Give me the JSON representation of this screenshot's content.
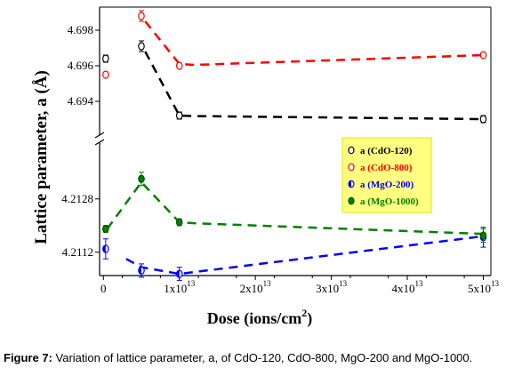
{
  "caption": {
    "label": "Figure 7:",
    "text": "Variation of lattice parameter, a, of CdO-120, CdO-800, MgO-200 and MgO-1000."
  },
  "chart_data": {
    "type": "scatter",
    "xlabel_main": "Dose (ions/cm",
    "xlabel_sup": "2",
    "xlabel_end": ")",
    "ylabel": "Lattice parameter, a (Å)",
    "x_ticks": [
      {
        "value": 0,
        "mant": "0",
        "exp": ""
      },
      {
        "value": 10000000000000.0,
        "mant": "1x10",
        "exp": "13"
      },
      {
        "value": 20000000000000.0,
        "mant": "2x10",
        "exp": "13"
      },
      {
        "value": 30000000000000.0,
        "mant": "3x10",
        "exp": "13"
      },
      {
        "value": 40000000000000.0,
        "mant": "4x10",
        "exp": "13"
      },
      {
        "value": 50000000000000.0,
        "mant": "5x10",
        "exp": "13"
      }
    ],
    "xlim": [
      -500000000000.0,
      51000000000000.0
    ],
    "y_upper": {
      "ylim": [
        4.6921,
        4.6993
      ],
      "ticks": [
        "4.694",
        "4.696",
        "4.698"
      ]
    },
    "y_lower": {
      "ylim": [
        4.2105,
        4.2145
      ],
      "ticks": [
        "4.2112",
        "4.2128"
      ]
    },
    "legend": {
      "position": "right-middle",
      "entries": [
        "a (CdO-120)",
        "a (CdO-800)",
        "a (MgO-200)",
        "a (MgO-1000)"
      ]
    },
    "series": [
      {
        "name": "a (CdO-120)",
        "panel": "upper",
        "color": "#000000",
        "x": [
          300000000000.0,
          5000000000000.0,
          10000000000000.0,
          50000000000000.0
        ],
        "y": [
          4.6964,
          4.6971,
          4.6932,
          4.693
        ],
        "err": [
          0.0002,
          0.0003,
          0.0002,
          0.0002
        ],
        "fit": [
          [
            5500000000000.0,
            4.6968
          ],
          [
            10000000000000.0,
            4.6932
          ],
          [
            12000000000000.0,
            4.69317
          ],
          [
            50000000000000.0,
            4.693
          ]
        ]
      },
      {
        "name": "a (CdO-800)",
        "panel": "upper",
        "color": "#ff0000",
        "x": [
          300000000000.0,
          5000000000000.0,
          10000000000000.0,
          50000000000000.0
        ],
        "y": [
          4.6955,
          4.6988,
          4.696,
          4.6966
        ],
        "err": [
          0.0001,
          0.0003,
          0.0001,
          0.0001
        ],
        "fit": [
          [
            5500000000000.0,
            4.6985
          ],
          [
            10000000000000.0,
            4.6961
          ],
          [
            12000000000000.0,
            4.69605
          ],
          [
            50000000000000.0,
            4.6966
          ]
        ]
      },
      {
        "name": "a (MgO-200)",
        "panel": "lower",
        "color": "#0000ff",
        "x": [
          300000000000.0,
          5000000000000.0,
          10000000000000.0,
          50000000000000.0
        ],
        "y": [
          4.2113,
          4.21065,
          4.21055,
          4.21165
        ],
        "err": [
          0.0003,
          0.0002,
          0.0002,
          0.0003
        ],
        "fit": [
          [
            3000000000000.0,
            4.211
          ],
          [
            5000000000000.0,
            4.21075
          ],
          [
            10000000000000.0,
            4.21055
          ],
          [
            50000000000000.0,
            4.21168
          ]
        ]
      },
      {
        "name": "a (MgO-1000)",
        "panel": "lower",
        "color": "#008000",
        "x": [
          300000000000.0,
          5000000000000.0,
          10000000000000.0,
          50000000000000.0
        ],
        "y": [
          4.2119,
          4.2134,
          4.2121,
          4.2117
        ],
        "err": [
          0.0001,
          0.0002,
          0.0001,
          0.0002
        ],
        "fit": [
          [
            500000000000.0,
            4.2119
          ],
          [
            5000000000000.0,
            4.2133
          ],
          [
            10000000000000.0,
            4.2121
          ],
          [
            12000000000000.0,
            4.21207
          ],
          [
            50000000000000.0,
            4.21175
          ]
        ]
      }
    ]
  }
}
